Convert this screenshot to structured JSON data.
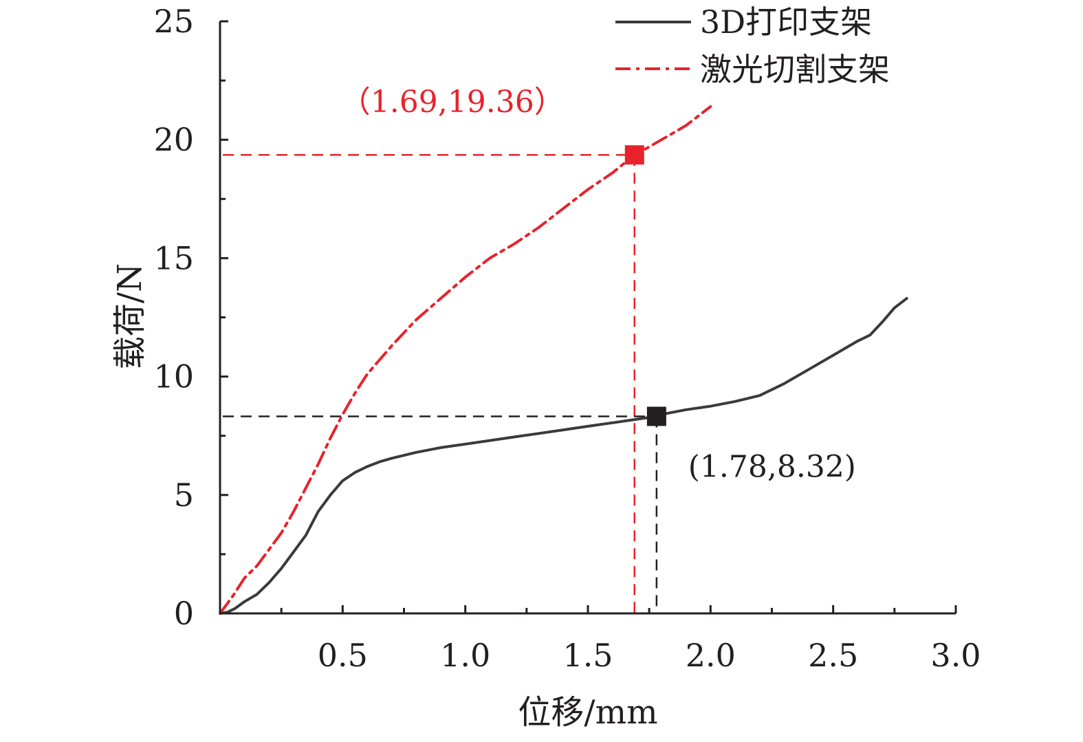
{
  "chart_data": {
    "type": "line",
    "xlabel": "位移/mm",
    "ylabel": "载荷/N",
    "xlim": [
      0,
      3.0
    ],
    "ylim": [
      0,
      25
    ],
    "x_ticks": [
      "0.5",
      "1.0",
      "1.5",
      "2.0",
      "2.5",
      "3.0"
    ],
    "y_ticks": [
      "0",
      "5",
      "10",
      "15",
      "20",
      "25"
    ],
    "grid": false,
    "legend_position": "top-right",
    "series": [
      {
        "name": "3D打印支架",
        "color": "#3a3a3a",
        "line_style": "solid",
        "x": [
          0,
          0.03,
          0.06,
          0.1,
          0.15,
          0.2,
          0.25,
          0.3,
          0.35,
          0.4,
          0.45,
          0.5,
          0.55,
          0.6,
          0.65,
          0.7,
          0.8,
          0.9,
          1.0,
          1.1,
          1.2,
          1.3,
          1.4,
          1.5,
          1.6,
          1.7,
          1.78,
          1.8,
          1.9,
          2.0,
          2.1,
          2.2,
          2.3,
          2.4,
          2.5,
          2.6,
          2.65,
          2.7,
          2.75,
          2.8
        ],
        "y": [
          0,
          0.05,
          0.2,
          0.5,
          0.8,
          1.3,
          1.9,
          2.6,
          3.3,
          4.3,
          5.0,
          5.6,
          5.95,
          6.2,
          6.4,
          6.55,
          6.8,
          7.0,
          7.15,
          7.3,
          7.45,
          7.6,
          7.75,
          7.9,
          8.05,
          8.2,
          8.32,
          8.4,
          8.6,
          8.75,
          8.95,
          9.2,
          9.7,
          10.3,
          10.9,
          11.5,
          11.75,
          12.3,
          12.9,
          13.3
        ]
      },
      {
        "name": "激光切割支架",
        "color": "#e8222a",
        "line_style": "dashdot",
        "x": [
          0,
          0.05,
          0.1,
          0.15,
          0.2,
          0.25,
          0.3,
          0.35,
          0.4,
          0.45,
          0.5,
          0.55,
          0.6,
          0.65,
          0.7,
          0.8,
          0.9,
          1.0,
          1.1,
          1.2,
          1.3,
          1.4,
          1.5,
          1.6,
          1.69,
          1.75,
          1.8,
          1.85,
          1.9,
          2.0
        ],
        "y": [
          0,
          0.7,
          1.5,
          2.0,
          2.7,
          3.4,
          4.3,
          5.3,
          6.3,
          7.4,
          8.4,
          9.3,
          10.1,
          10.7,
          11.3,
          12.4,
          13.3,
          14.2,
          15.0,
          15.6,
          16.3,
          17.1,
          17.9,
          18.6,
          19.36,
          19.7,
          20.0,
          20.3,
          20.6,
          21.4
        ]
      }
    ],
    "markers": [
      {
        "series": "激光切割支架",
        "x": 1.69,
        "y": 19.36,
        "label": "（1.69,19.36）",
        "color": "#e8222a"
      },
      {
        "series": "3D打印支架",
        "x": 1.78,
        "y": 8.32,
        "label": "(1.78,8.32)",
        "color": "#231f20"
      }
    ]
  }
}
